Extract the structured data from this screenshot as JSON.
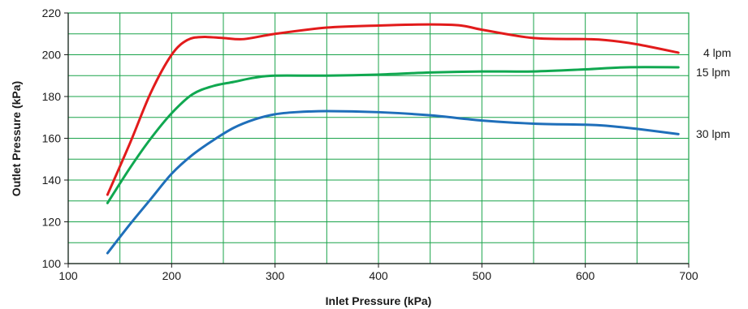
{
  "chart_data": {
    "type": "line",
    "xlabel": "Inlet Pressure (kPa)",
    "ylabel": "Outlet Pressure (kPa)",
    "xlim": [
      100,
      700
    ],
    "ylim": [
      100,
      220
    ],
    "x_ticks": [
      100,
      200,
      300,
      400,
      500,
      600,
      700
    ],
    "y_ticks": [
      100,
      120,
      140,
      160,
      180,
      200,
      220
    ],
    "x_minor_step": 50,
    "y_minor_step": 10,
    "grid": true,
    "grid_color": "#1aa34a",
    "series": [
      {
        "name": "4 lpm",
        "color": "#e21b1b",
        "x": [
          138,
          160,
          180,
          200,
          215,
          230,
          250,
          270,
          300,
          350,
          400,
          450,
          480,
          500,
          550,
          600,
          620,
          650,
          690
        ],
        "y": [
          133,
          158,
          182,
          200,
          207,
          208.5,
          208,
          207.5,
          210,
          213,
          214,
          214.5,
          214,
          212,
          208,
          207.5,
          207,
          205,
          201
        ]
      },
      {
        "name": "15 lpm",
        "color": "#10a850",
        "x": [
          138,
          160,
          180,
          200,
          220,
          240,
          260,
          280,
          300,
          350,
          400,
          450,
          500,
          550,
          600,
          640,
          690
        ],
        "y": [
          129,
          146,
          160,
          172,
          181,
          185,
          187,
          189,
          190,
          190,
          190.5,
          191.5,
          192,
          192,
          193,
          194,
          194
        ]
      },
      {
        "name": "30 lpm",
        "color": "#1f6fba",
        "x": [
          138,
          160,
          180,
          200,
          220,
          240,
          260,
          280,
          300,
          320,
          350,
          400,
          450,
          500,
          550,
          600,
          620,
          650,
          690
        ],
        "y": [
          105,
          119,
          131,
          143,
          152,
          159,
          165,
          169,
          171.5,
          172.5,
          173,
          172.5,
          171,
          168.5,
          167,
          166.5,
          166,
          164.5,
          162
        ]
      }
    ]
  }
}
